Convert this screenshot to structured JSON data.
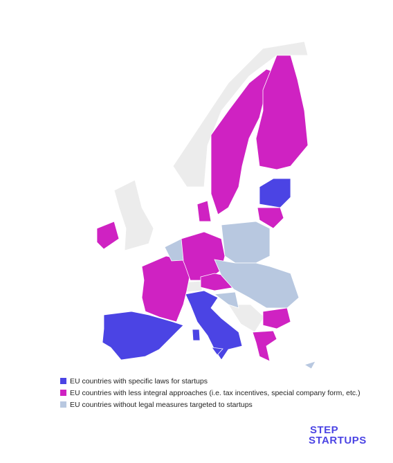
{
  "legend": [
    {
      "label": "EU countries with specific laws for startups",
      "color": "#4b44e4"
    },
    {
      "label": "EU countries with less integral approaches (i.e. tax incentives, special company form, etc.)",
      "color": "#cf22c2"
    },
    {
      "label": "EU countries without legal measures targeted to startups",
      "color": "#b8c8e0"
    }
  ],
  "logo": {
    "line1": "STEP",
    "line2": "STARTUPS"
  }
}
